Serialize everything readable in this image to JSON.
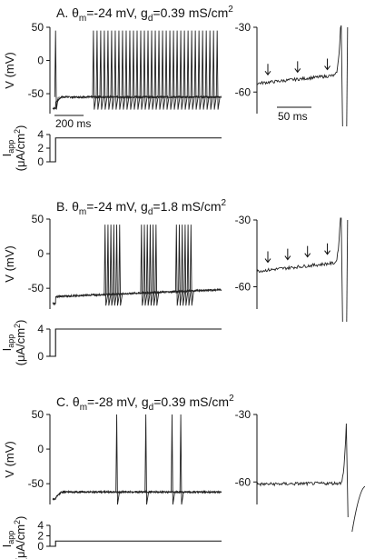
{
  "chart_data": [
    {
      "type": "line",
      "panel": "A",
      "title": {
        "prefix": "A. θ",
        "sub1": "m",
        "mid": "=-24 mV, g",
        "sub2": "d",
        "tail": "=0.39 mS/cm",
        "sup": "2"
      },
      "voltage": {
        "ylabel": "V (mV)",
        "yticks": [
          "50",
          "0",
          "-50"
        ],
        "ylim": [
          -80,
          50
        ],
        "rest_mV": -72,
        "plateau_mV": -55,
        "spike_peak_mV": 45,
        "spike_trough_mV": -74,
        "spike_times_ms": [
          0,
          260,
          285,
          310,
          335,
          360,
          385,
          410,
          435,
          460,
          485,
          510,
          535,
          560,
          585,
          610,
          635,
          660,
          685,
          710,
          735,
          760,
          785,
          810,
          835,
          860,
          885,
          910,
          935,
          960,
          985,
          1010,
          1035,
          1060,
          1085,
          1110
        ],
        "note_first_spike_near_step": true
      },
      "scalebar": {
        "label": "200 ms",
        "duration_ms": 200
      },
      "current": {
        "ylabel": "I",
        "ylabel_sub": "app",
        "ylabel_units": "(μA/cm",
        "ylabel_units_sup": "2",
        "ylabel_units_end": ")",
        "yticks": [
          "4",
          "2",
          "0"
        ],
        "ylim": [
          0,
          4
        ],
        "level": 3.5
      },
      "zoom": {
        "yticks": [
          "-30",
          "-60"
        ],
        "ylim": [
          -70,
          -30
        ],
        "scalebar": {
          "label": "50 ms",
          "duration_ms": 50
        },
        "arrows": 3,
        "baseline_mV": -56
      }
    },
    {
      "type": "line",
      "panel": "B",
      "title": {
        "prefix": "B. θ",
        "sub1": "m",
        "mid": "=-24 mV, g",
        "sub2": "d",
        "tail": "=1.8 mS/cm",
        "sup": "2"
      },
      "voltage": {
        "ylabel": "V (mV)",
        "yticks": [
          "50",
          "0",
          "-50"
        ],
        "ylim": [
          -80,
          50
        ],
        "rest_mV": -72,
        "ramp_start_mV": -62,
        "ramp_end_mV": -52,
        "spike_peak_mV": 42,
        "spike_trough_mV": -75,
        "bursts_ms": [
          [
            340,
            360,
            380,
            400,
            420,
            440
          ],
          [
            590,
            610,
            630,
            650,
            670,
            690
          ],
          [
            830,
            850,
            870,
            890,
            910,
            930
          ]
        ]
      },
      "current": {
        "ylabel": "I",
        "ylabel_sub": "app",
        "ylabel_units": "(μA/cm",
        "ylabel_units_sup": "2",
        "ylabel_units_end": ")",
        "yticks": [
          "4",
          "0"
        ],
        "ylim": [
          0,
          4
        ],
        "level": 4
      },
      "zoom": {
        "yticks": [
          "-30",
          "-60"
        ],
        "ylim": [
          -70,
          -30
        ],
        "arrows": 4,
        "baseline_mV": -53
      }
    },
    {
      "type": "line",
      "panel": "C",
      "title": {
        "prefix": "C. θ",
        "sub1": "m",
        "mid": "=-28 mV, g",
        "sub2": "d",
        "tail": "=0.39 mS/cm",
        "sup": "2"
      },
      "voltage": {
        "ylabel": "V (mV)",
        "yticks": [
          "50",
          "0",
          "-50"
        ],
        "ylim": [
          -80,
          50
        ],
        "rest_mV": -72,
        "plateau_mV": -62,
        "spike_peak_mV": 50,
        "spike_trough_mV": -80,
        "spike_times_ms": [
          420,
          620,
          800,
          860
        ]
      },
      "current": {
        "ylabel": "I",
        "ylabel_sub": "app",
        "ylabel_units": "(μA/cm",
        "ylabel_units_sup": "2",
        "ylabel_units_end": ")",
        "yticks": [
          "4",
          "2",
          "0"
        ],
        "ylim": [
          0,
          4
        ],
        "level": 1
      },
      "zoom": {
        "yticks": [
          "-30",
          "-60"
        ],
        "ylim": [
          -70,
          -30
        ],
        "arrows": 0,
        "baseline_mV": -61
      }
    }
  ]
}
